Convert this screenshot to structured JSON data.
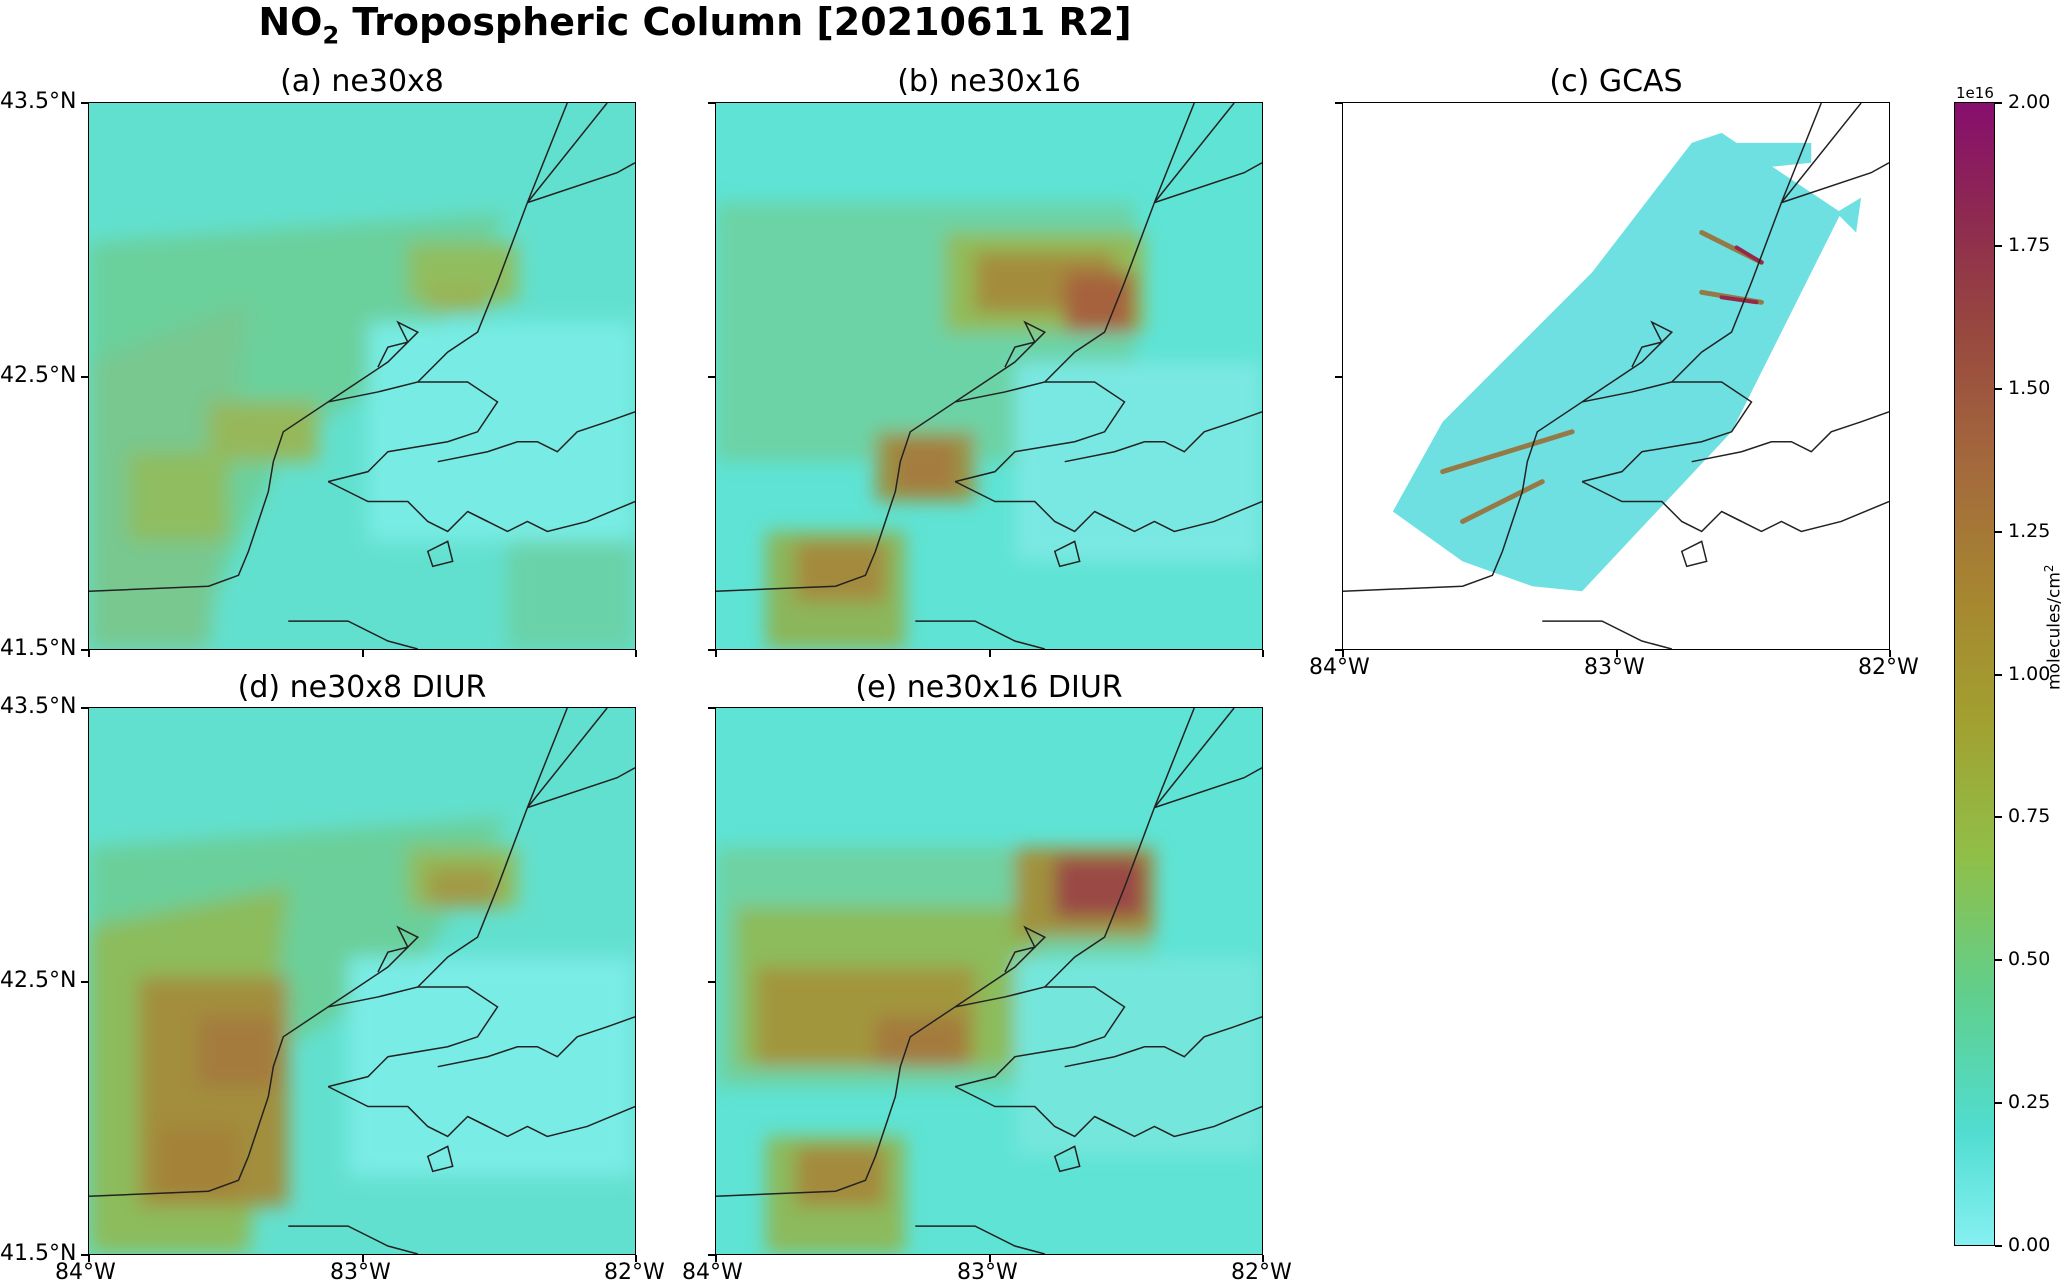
{
  "figure": {
    "title_main": "NO",
    "title_sub": "2",
    "title_rest": " Tropospheric Column [20210611 R2]"
  },
  "panels": [
    {
      "id": "a",
      "label": "(a) ne30x8"
    },
    {
      "id": "b",
      "label": "(b) ne30x16"
    },
    {
      "id": "c",
      "label": "(c) GCAS"
    },
    {
      "id": "d",
      "label": "(d) ne30x8 DIUR"
    },
    {
      "id": "e",
      "label": "(e) ne30x16 DIUR"
    }
  ],
  "axes": {
    "lat_labels": [
      "43.5°N",
      "42.5°N",
      "41.5°N"
    ],
    "lon_labels": [
      "84°W",
      "83°W",
      "82°W"
    ],
    "lat_range": [
      41.5,
      43.5
    ],
    "lon_range": [
      -84,
      -82
    ]
  },
  "colorbar": {
    "exponent": "1e16",
    "unit_text": "molecules/cm",
    "unit_sup": "2",
    "ticks": [
      "2.00",
      "1.75",
      "1.50",
      "1.25",
      "1.00",
      "0.75",
      "0.50",
      "0.25",
      "0.00"
    ],
    "range": [
      0,
      2.0
    ],
    "colors": {
      "low": "#86f0f2",
      "mid": "#a2a030",
      "high": "#870e6e"
    }
  }
}
